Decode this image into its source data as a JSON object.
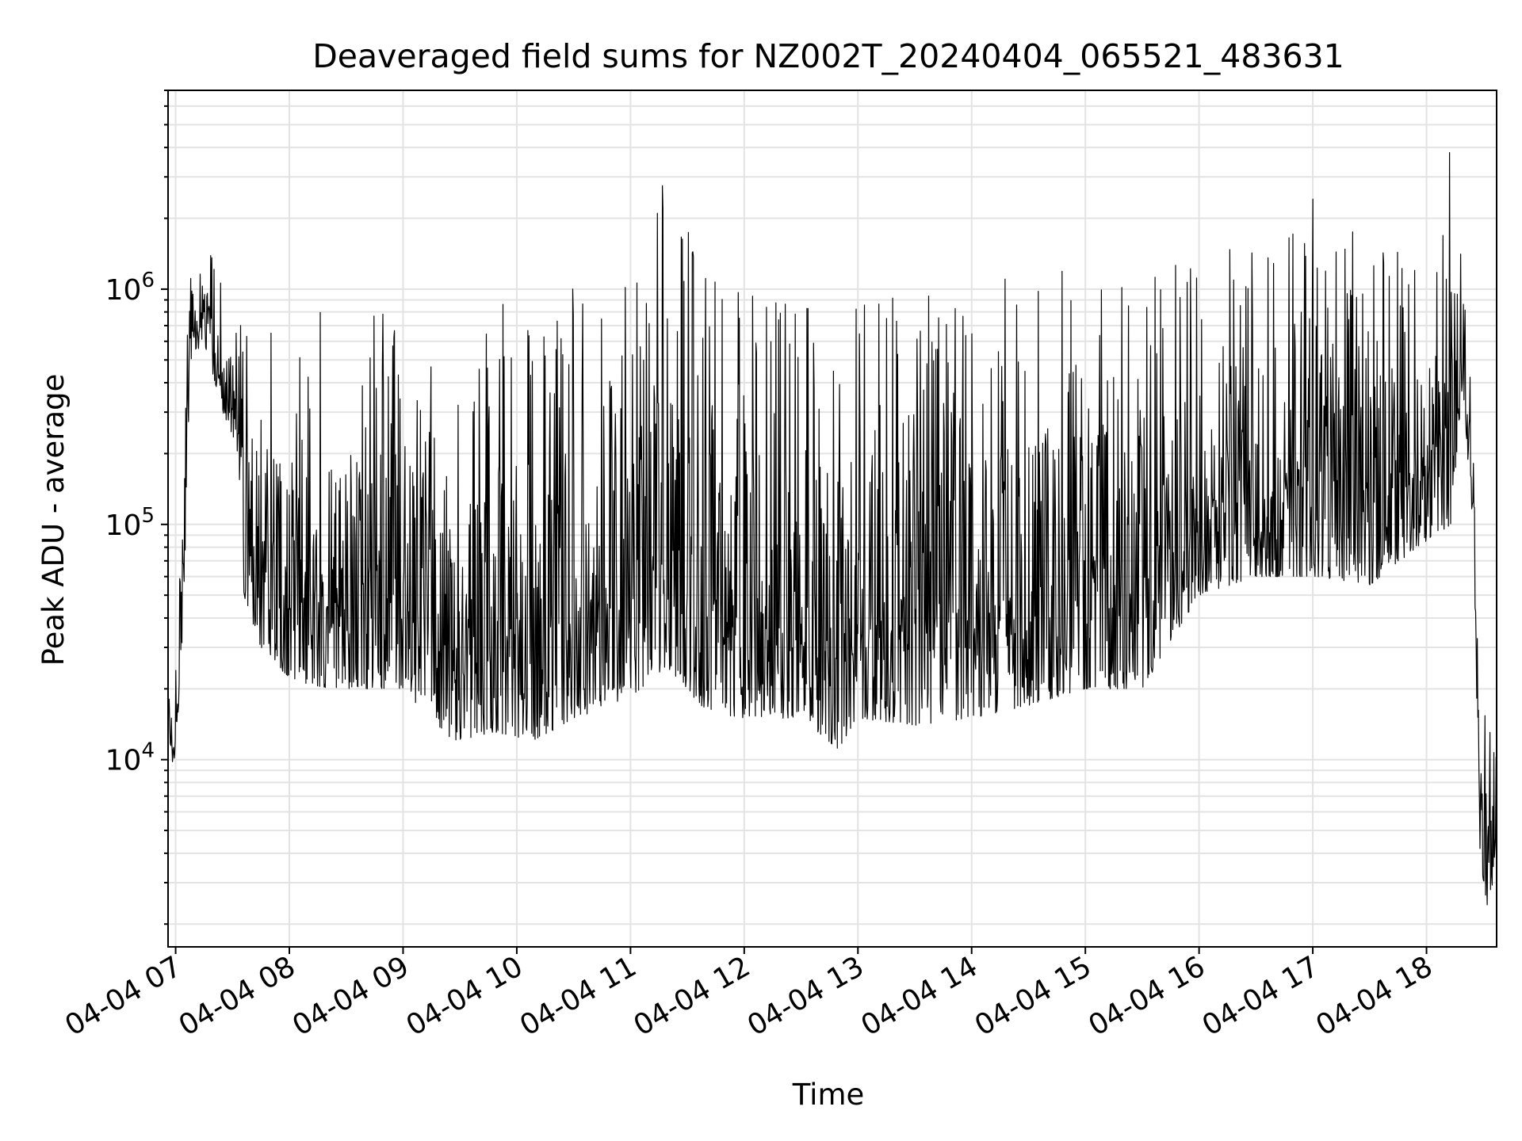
{
  "chart_data": {
    "type": "line",
    "title": "Deaveraged field sums for NZ002T_20240404_065521_483631",
    "xlabel": "Time",
    "ylabel": "Peak ADU - average",
    "yscale": "log",
    "ylim": [
      1600,
      7000000
    ],
    "xlim": [
      "2024-04-04 06:56",
      "2024-04-04 18:37"
    ],
    "grid": true,
    "x_ticks": [
      {
        "label": "04-04 07",
        "value": "2024-04-04 07:00"
      },
      {
        "label": "04-04 08",
        "value": "2024-04-04 08:00"
      },
      {
        "label": "04-04 09",
        "value": "2024-04-04 09:00"
      },
      {
        "label": "04-04 10",
        "value": "2024-04-04 10:00"
      },
      {
        "label": "04-04 11",
        "value": "2024-04-04 11:00"
      },
      {
        "label": "04-04 12",
        "value": "2024-04-04 12:00"
      },
      {
        "label": "04-04 13",
        "value": "2024-04-04 13:00"
      },
      {
        "label": "04-04 14",
        "value": "2024-04-04 14:00"
      },
      {
        "label": "04-04 15",
        "value": "2024-04-04 15:00"
      },
      {
        "label": "04-04 16",
        "value": "2024-04-04 16:00"
      },
      {
        "label": "04-04 17",
        "value": "2024-04-04 17:00"
      },
      {
        "label": "04-04 18",
        "value": "2024-04-04 18:00"
      }
    ],
    "y_ticks": [
      {
        "base": "10",
        "exp": "4",
        "value": 10000
      },
      {
        "base": "10",
        "exp": "5",
        "value": 100000
      },
      {
        "base": "10",
        "exp": "6",
        "value": 1000000
      }
    ],
    "series": [
      {
        "color": "#000000",
        "points": [
          {
            "x": "2024-04-04 06:56",
            "lower": 9000,
            "upper": 20000
          },
          {
            "x": "2024-04-04 07:00",
            "lower": 10000,
            "upper": 25000
          },
          {
            "x": "2024-04-04 07:04",
            "lower": 40000,
            "upper": 250000
          },
          {
            "x": "2024-04-04 07:08",
            "lower": 500000,
            "upper": 1500000
          },
          {
            "x": "2024-04-04 07:15",
            "lower": 600000,
            "upper": 2300000
          },
          {
            "x": "2024-04-04 07:25",
            "lower": 300000,
            "upper": 1000000
          },
          {
            "x": "2024-04-04 07:33",
            "lower": 200000,
            "upper": 900000
          },
          {
            "x": "2024-04-04 07:36",
            "lower": 50000,
            "upper": 700000
          },
          {
            "x": "2024-04-04 07:45",
            "lower": 30000,
            "upper": 1300000
          },
          {
            "x": "2024-04-04 08:00",
            "lower": 22000,
            "upper": 500000
          },
          {
            "x": "2024-04-04 08:20",
            "lower": 20000,
            "upper": 900000
          },
          {
            "x": "2024-04-04 08:45",
            "lower": 20000,
            "upper": 800000
          },
          {
            "x": "2024-04-04 09:00",
            "lower": 20000,
            "upper": 1000000
          },
          {
            "x": "2024-04-04 09:25",
            "lower": 12000,
            "upper": 300000
          },
          {
            "x": "2024-04-04 09:50",
            "lower": 13000,
            "upper": 1100000
          },
          {
            "x": "2024-04-04 10:10",
            "lower": 12000,
            "upper": 700000
          },
          {
            "x": "2024-04-04 10:30",
            "lower": 15000,
            "upper": 1100000
          },
          {
            "x": "2024-04-04 10:55",
            "lower": 17000,
            "upper": 1000000
          },
          {
            "x": "2024-04-04 11:19",
            "lower": 25000,
            "upper": 3200000
          },
          {
            "x": "2024-04-04 11:40",
            "lower": 16000,
            "upper": 1100000
          },
          {
            "x": "2024-04-04 12:00",
            "lower": 15000,
            "upper": 1000000
          },
          {
            "x": "2024-04-04 12:30",
            "lower": 15000,
            "upper": 900000
          },
          {
            "x": "2024-04-04 12:50",
            "lower": 11000,
            "upper": 700000
          },
          {
            "x": "2024-04-04 13:00",
            "lower": 15000,
            "upper": 850000
          },
          {
            "x": "2024-04-04 13:30",
            "lower": 14000,
            "upper": 1000000
          },
          {
            "x": "2024-04-04 14:00",
            "lower": 15000,
            "upper": 1100000
          },
          {
            "x": "2024-04-04 14:30",
            "lower": 17000,
            "upper": 1200000
          },
          {
            "x": "2024-04-04 15:00",
            "lower": 20000,
            "upper": 1300000
          },
          {
            "x": "2024-04-04 15:30",
            "lower": 20000,
            "upper": 1400000
          },
          {
            "x": "2024-04-04 16:00",
            "lower": 50000,
            "upper": 1600000
          },
          {
            "x": "2024-04-04 16:30",
            "lower": 60000,
            "upper": 1800000
          },
          {
            "x": "2024-04-04 17:00",
            "lower": 60000,
            "upper": 2500000
          },
          {
            "x": "2024-04-04 17:30",
            "lower": 55000,
            "upper": 1700000
          },
          {
            "x": "2024-04-04 17:55",
            "lower": 80000,
            "upper": 1400000
          },
          {
            "x": "2024-04-04 18:13",
            "lower": 100000,
            "upper": 4500000
          },
          {
            "x": "2024-04-04 18:19",
            "lower": 400000,
            "upper": 2000000
          },
          {
            "x": "2024-04-04 18:25",
            "lower": 80000,
            "upper": 200000
          },
          {
            "x": "2024-04-04 18:28",
            "lower": 4000,
            "upper": 30000
          },
          {
            "x": "2024-04-04 18:33",
            "lower": 2000,
            "upper": 15000
          },
          {
            "x": "2024-04-04 18:37",
            "lower": 5000,
            "upper": 12000
          }
        ]
      }
    ]
  }
}
